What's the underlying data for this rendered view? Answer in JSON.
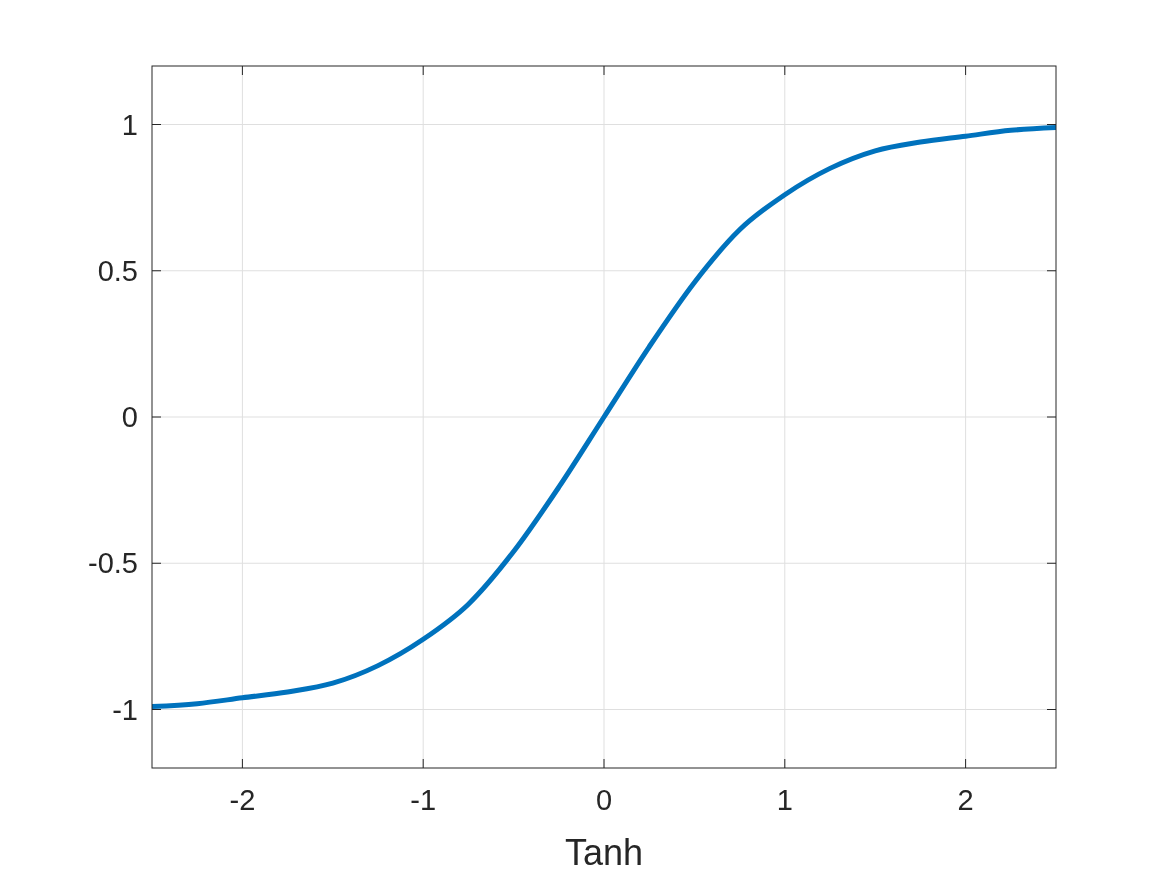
{
  "chart_data": {
    "type": "line",
    "xlabel": "Tanh",
    "x": [
      -2.5,
      -2.25,
      -2,
      -1.75,
      -1.5,
      -1.25,
      -1,
      -0.75,
      -0.5,
      -0.25,
      0,
      0.25,
      0.5,
      0.75,
      1,
      1.25,
      1.5,
      1.75,
      2,
      2.25,
      2.5
    ],
    "series": [
      {
        "color": "#0072bd",
        "values": [
          -0.99,
          -0.98,
          -0.96,
          -0.94,
          -0.91,
          -0.85,
          -0.76,
          -0.64,
          -0.46,
          -0.24,
          0,
          0.24,
          0.46,
          0.64,
          0.76,
          0.85,
          0.91,
          0.94,
          0.96,
          0.98,
          0.99
        ]
      }
    ],
    "xlim": [
      -2.5,
      2.5
    ],
    "xticks": [
      -2,
      -1,
      0,
      1,
      2
    ],
    "ylim": [
      -1.2,
      1.2
    ],
    "yticks": [
      -1,
      -0.5,
      0,
      0.5,
      1
    ],
    "grid": true,
    "marker": "none",
    "line_style": "solid"
  }
}
